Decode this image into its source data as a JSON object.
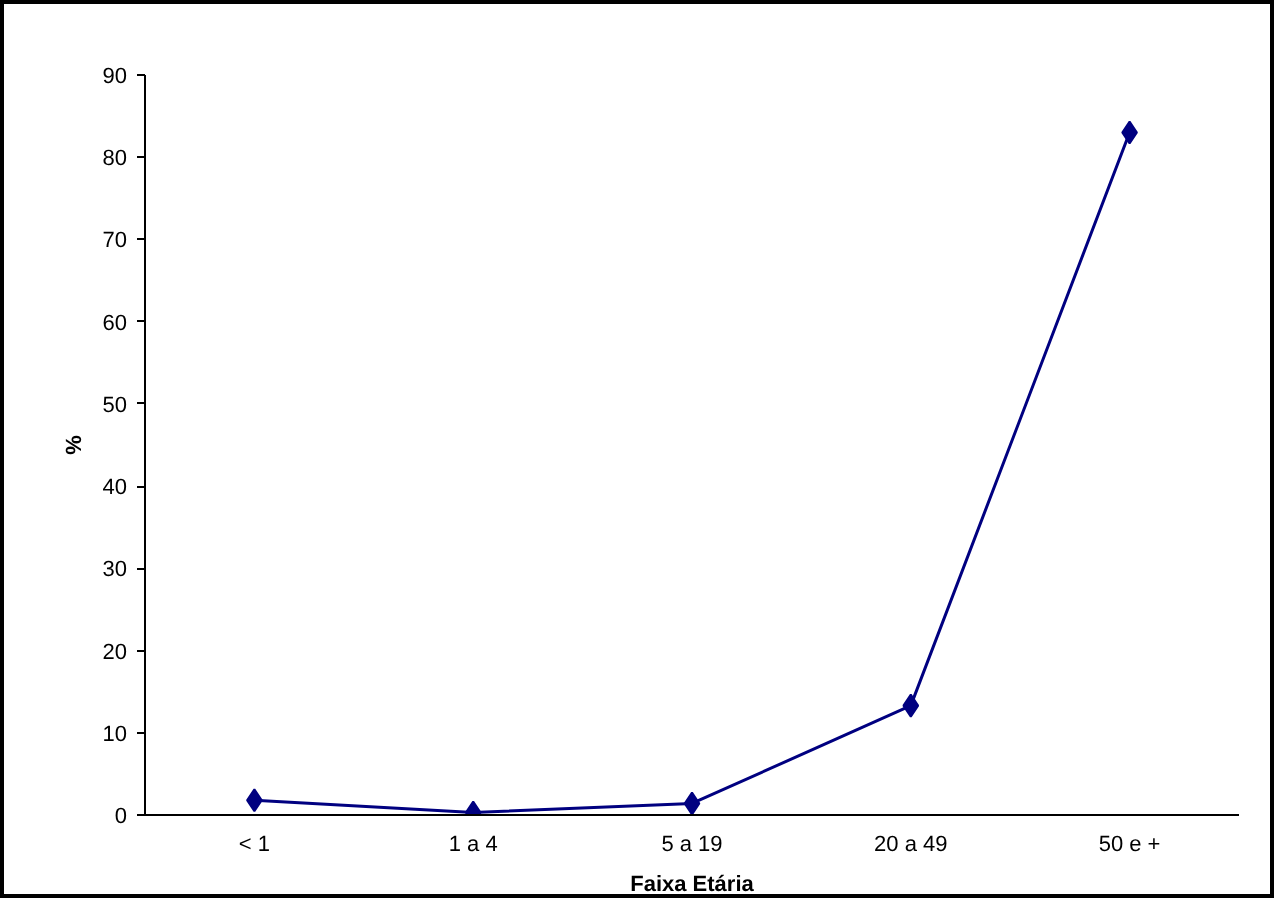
{
  "chart_data": {
    "type": "line",
    "xlabel": "Faixa Etária",
    "ylabel": "%",
    "categories": [
      "< 1",
      "1 a 4",
      "5 a 19",
      "20 a 49",
      "50 e +"
    ],
    "series": [
      {
        "color": "#000080",
        "values": [
          1.8,
          0.3,
          1.4,
          13.3,
          83
        ]
      }
    ],
    "ylim": [
      0,
      90
    ],
    "yticks": [
      0,
      10,
      20,
      30,
      40,
      50,
      60,
      70,
      80,
      90
    ],
    "grid": false,
    "marker": "diamond",
    "line_style": "solid"
  }
}
